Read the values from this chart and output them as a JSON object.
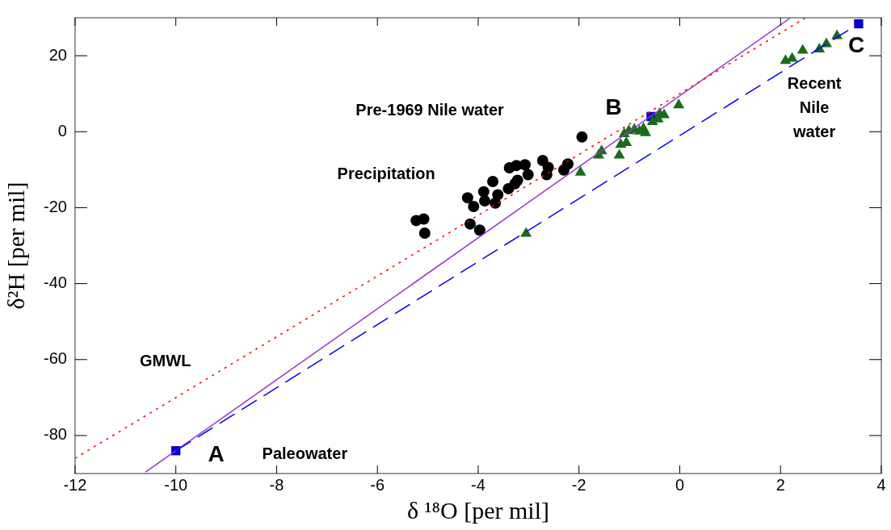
{
  "chart_data": {
    "type": "scatter",
    "xlabel": "δ ¹⁸O [per mil]",
    "ylabel": "δ²H [per mil]",
    "xlim": [
      -12,
      4
    ],
    "ylim": [
      -90,
      30
    ],
    "xticks": [
      -12,
      -10,
      -8,
      -6,
      -4,
      -2,
      0,
      2,
      4
    ],
    "yticks": [
      -80,
      -60,
      -40,
      -20,
      0,
      20
    ],
    "grid": false,
    "legend": false,
    "series": [
      {
        "type": "line",
        "color": "#ff0000",
        "line_style": "dotted",
        "marker": "none",
        "x": [
          -12,
          2.5
        ],
        "values": [
          -86,
          30
        ]
      },
      {
        "type": "line",
        "color": "#0000ff",
        "line_style": "dashed",
        "marker": "none",
        "x": [
          -10,
          3.5
        ],
        "values": [
          -84,
          28
        ]
      },
      {
        "type": "line",
        "color": "#9933cc",
        "line_style": "solid",
        "marker": "none",
        "x": [
          -10.6,
          2.2
        ],
        "values": [
          -89.6,
          30
        ]
      },
      {
        "color": "#000000",
        "marker": "circle",
        "x": [
          -5.23,
          -5.08,
          -5.06,
          -4.21,
          -4.09,
          -4.16,
          -3.97,
          -3.89,
          -3.87,
          -3.71,
          -3.61,
          -3.66,
          -3.4,
          -3.38,
          -3.24,
          -3.22,
          -3.27,
          -3.07,
          -3.01,
          -2.72,
          -2.61,
          -2.64,
          -2.3,
          -2.22,
          -1.94
        ],
        "values": [
          -23.4,
          -23,
          -26.7,
          -17.4,
          -19.7,
          -24.3,
          -25.9,
          -15.8,
          -18.2,
          -13.1,
          -16.6,
          -18.8,
          -15,
          -9.5,
          -8.9,
          -12.8,
          -13.7,
          -8.7,
          -11.3,
          -7.6,
          -9.4,
          -11.3,
          -10.1,
          -8.5,
          -1.4
        ]
      },
      {
        "color": "#1a6b1a",
        "marker": "triangle",
        "x": [
          -3.05,
          -1.97,
          -1.61,
          -1.55,
          -1.2,
          -1.17,
          -1.06,
          -1.1,
          -1.01,
          -0.9,
          -0.8,
          -0.72,
          -0.68,
          -0.54,
          -0.43,
          -0.4,
          -0.31,
          -0.02,
          2.1,
          2.23,
          2.44,
          2.77,
          2.91,
          3.12
        ],
        "values": [
          -26.8,
          -10.7,
          -6.2,
          -5.1,
          -6.2,
          -3.4,
          -2.9,
          -0.6,
          0.2,
          0.6,
          0.1,
          0.8,
          -0.3,
          2.6,
          3.3,
          4.7,
          4.4,
          7,
          18.7,
          19.3,
          21.4,
          21.7,
          23.1,
          25.2
        ]
      },
      {
        "color": "#0000cc",
        "marker": "square",
        "x": [
          -10,
          -0.57,
          3.55
        ],
        "values": [
          -84,
          4,
          28.4
        ]
      }
    ],
    "annotations": [
      "Pre-1969 Nile water",
      "Precipitation",
      "B",
      "C",
      "Recent\nNile\nwater",
      "GMWL",
      "A",
      "Paleowater"
    ]
  }
}
